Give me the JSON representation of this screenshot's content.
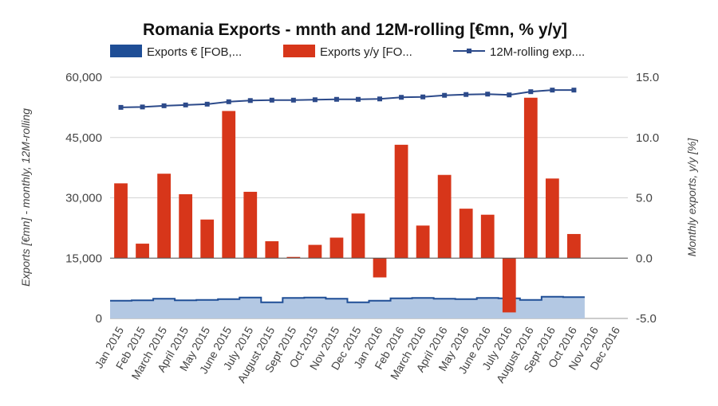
{
  "chart_data": {
    "type": "bar",
    "title": "Romania Exports - mnth and 12M-rolling [€mn, % y/y]",
    "legend": {
      "placement": "top",
      "entries": [
        {
          "label": "Exports € [FOB,...",
          "color": "#1f4e96",
          "marker": "area"
        },
        {
          "label": "Exports y/y [FO...",
          "color": "#d7361a",
          "marker": "bar"
        },
        {
          "label": "12M-rolling exp....",
          "color": "#2c4a8a",
          "marker": "line-square"
        }
      ]
    },
    "categories": [
      "Jan 2015",
      "Feb 2015",
      "March 2015",
      "April 2015",
      "May 2015",
      "June 2015",
      "July 2015",
      "August 2015",
      "Sept 2015",
      "Oct 2015",
      "Nov 2015",
      "Dec 2015",
      "Jan 2016",
      "Feb 2016",
      "March 2016",
      "April 2016",
      "May 2016",
      "June 2016",
      "July 2016",
      "August 2016",
      "Sept 2016",
      "Oct 2016",
      "Nov 2016",
      "Dec 2016"
    ],
    "left_axis": {
      "label": "Exports [€mn] - monthly, 12M-rolling",
      "min": 0,
      "max": 60000,
      "ticks": [
        0,
        15000,
        30000,
        45000,
        60000
      ],
      "tick_labels": [
        "0",
        "15,000",
        "30,000",
        "45,000",
        "60,000"
      ]
    },
    "right_axis": {
      "label": "Monthly exports, y/y [%]",
      "min": -5,
      "max": 15,
      "ticks": [
        -5,
        0,
        5,
        10,
        15
      ],
      "tick_labels": [
        "-5.0",
        "0.0",
        "5.0",
        "10.0",
        "15.0"
      ]
    },
    "grid": true,
    "series": [
      {
        "type": "area",
        "axis": "left",
        "color": "#1f4e96",
        "fill": "#b3c8e3",
        "values": [
          4400,
          4500,
          4900,
          4500,
          4600,
          4800,
          5200,
          4000,
          5100,
          5200,
          4900,
          4000,
          4400,
          5000,
          5100,
          4900,
          4800,
          5100,
          5000,
          4600,
          5400,
          5300,
          null,
          null
        ]
      },
      {
        "type": "bar",
        "axis": "right",
        "color": "#d7361a",
        "values": [
          6.2,
          1.2,
          7.0,
          5.3,
          3.2,
          12.2,
          5.5,
          1.4,
          0.1,
          1.1,
          1.7,
          3.7,
          -1.6,
          9.4,
          2.7,
          6.9,
          4.1,
          3.6,
          -4.5,
          13.3,
          6.6,
          2.0,
          null,
          null
        ]
      },
      {
        "type": "line",
        "axis": "left",
        "color": "#2c4a8a",
        "marker": "square",
        "values": [
          52500,
          52600,
          52900,
          53100,
          53300,
          53900,
          54200,
          54300,
          54300,
          54400,
          54500,
          54500,
          54600,
          55000,
          55100,
          55500,
          55700,
          55800,
          55600,
          56400,
          56800,
          56800,
          null,
          null
        ]
      }
    ]
  }
}
